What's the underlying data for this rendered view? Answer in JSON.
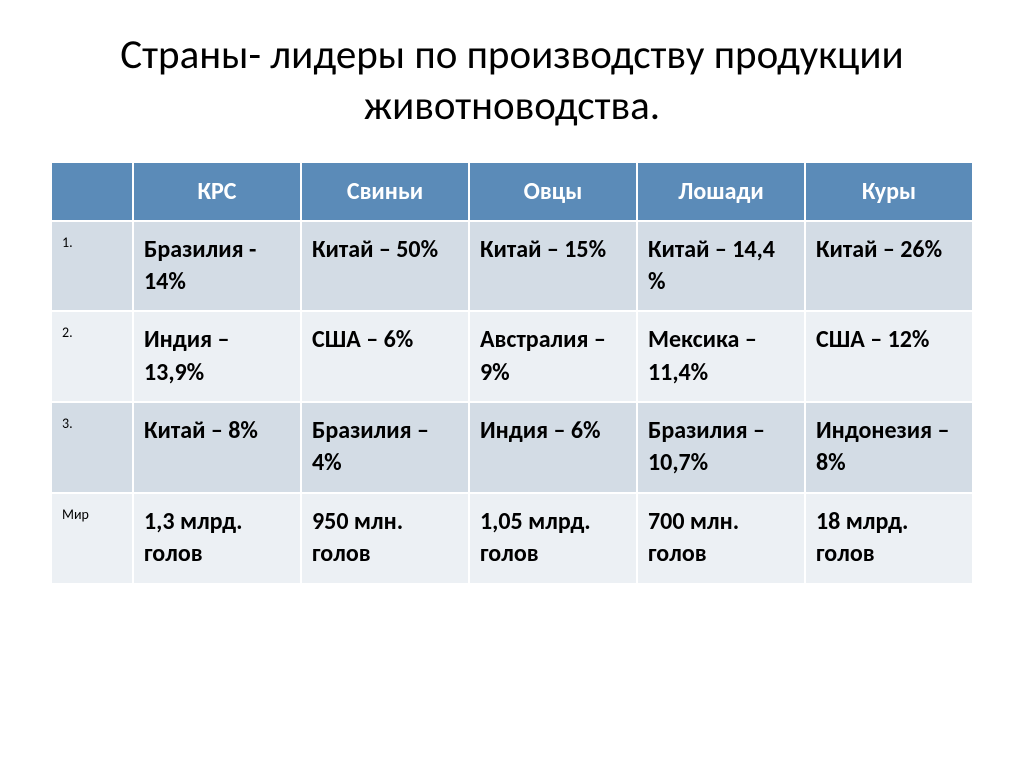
{
  "title": "Страны- лидеры по производству продукции животноводства.",
  "table": {
    "type": "table",
    "header_bg": "#5b8bb8",
    "header_color": "#ffffff",
    "row_light_bg": "#d3dce5",
    "row_dark_bg": "#ecf0f4",
    "border_color": "#ffffff",
    "text_color": "#000000",
    "columns": [
      "",
      "КРС",
      "Свиньи",
      "Овцы",
      "Лошади",
      "Куры"
    ],
    "rows": [
      {
        "rank": "1.",
        "cells": [
          "Бразилия - 14%",
          "Китай – 50%",
          "Китай – 15%",
          "Китай – 14,4  %",
          "Китай – 26%"
        ]
      },
      {
        "rank": "2.",
        "cells": [
          "Индия – 13,9%",
          "США – 6%",
          "Австралия – 9%",
          "Мексика – 11,4%",
          "США – 12%"
        ]
      },
      {
        "rank": "3.",
        "cells": [
          "Китай – 8%",
          "Бразилия – 4%",
          "Индия – 6%",
          "Бразилия – 10,7%",
          "Индонезия – 8%"
        ]
      },
      {
        "rank": "Мир",
        "cells": [
          "1,3 млрд. голов",
          "950 млн. голов",
          "1,05 млрд. голов",
          "700 млн. голов",
          "18 млрд. голов"
        ]
      }
    ]
  }
}
